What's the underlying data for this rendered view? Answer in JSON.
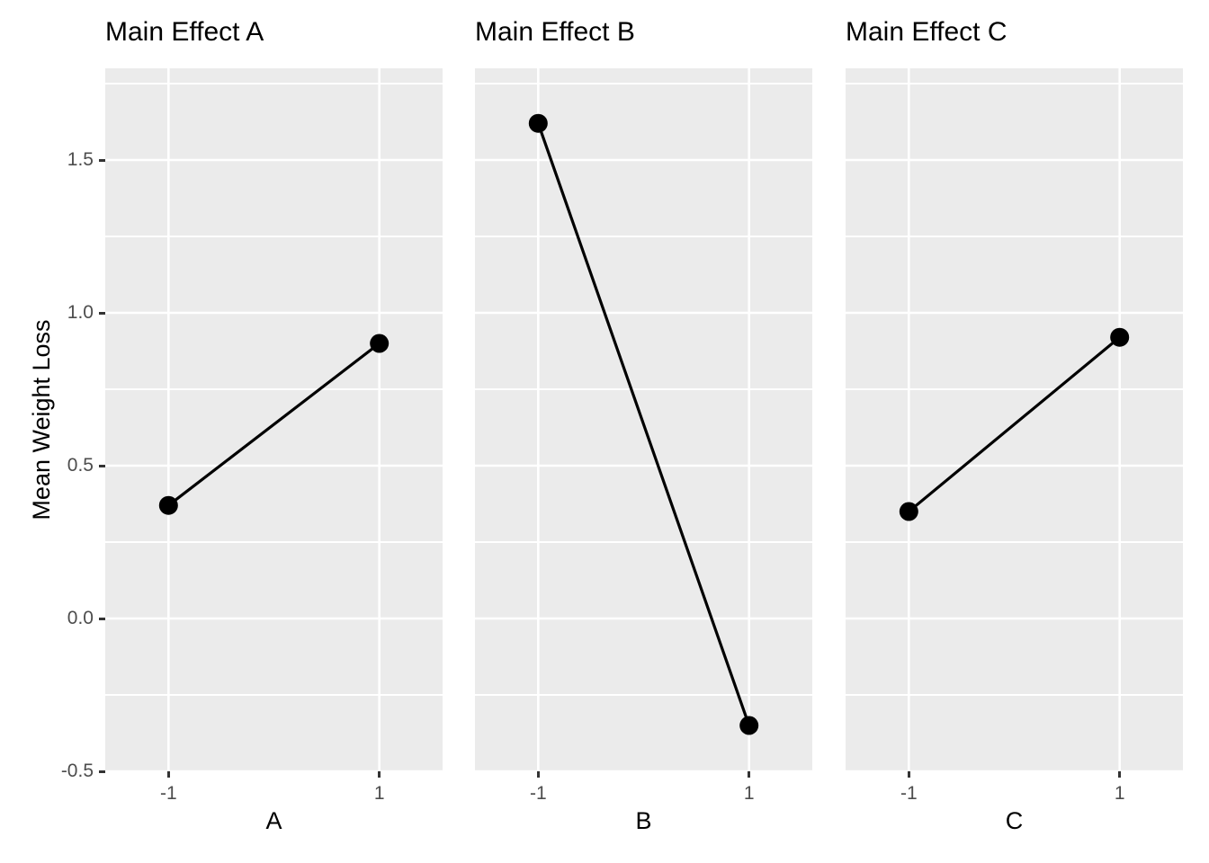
{
  "chart_data": [
    {
      "type": "line",
      "title": "Main Effect A",
      "xlabel": "A",
      "ylabel": "Mean Weight Loss",
      "x": [
        -1,
        1
      ],
      "values": [
        0.37,
        0.9
      ],
      "x_tick_labels": [
        "-1",
        "1"
      ],
      "xlim": [
        -1.6,
        1.6
      ],
      "ylim": [
        -0.5,
        1.8
      ],
      "grid": true,
      "legend": false
    },
    {
      "type": "line",
      "title": "Main Effect B",
      "xlabel": "B",
      "ylabel": "Mean Weight Loss",
      "x": [
        -1,
        1
      ],
      "values": [
        1.62,
        -0.35
      ],
      "x_tick_labels": [
        "-1",
        "1"
      ],
      "xlim": [
        -1.6,
        1.6
      ],
      "ylim": [
        -0.5,
        1.8
      ],
      "grid": true,
      "legend": false
    },
    {
      "type": "line",
      "title": "Main Effect C",
      "xlabel": "C",
      "ylabel": "Mean Weight Loss",
      "x": [
        -1,
        1
      ],
      "values": [
        0.35,
        0.92
      ],
      "x_tick_labels": [
        "-1",
        "1"
      ],
      "xlim": [
        -1.6,
        1.6
      ],
      "ylim": [
        -0.5,
        1.8
      ],
      "grid": true,
      "legend": false
    }
  ],
  "y_axis": {
    "title": "Mean Weight Loss",
    "ticks": [
      -0.5,
      0.0,
      0.5,
      1.0,
      1.5
    ],
    "tick_labels": [
      "-0.5",
      "0.0",
      "0.5",
      "1.0",
      "1.5"
    ],
    "minor_ticks": [
      -0.25,
      0.25,
      0.75,
      1.25,
      1.75
    ]
  },
  "x_axis": {
    "ticks": [
      -1,
      1
    ],
    "tick_labels": [
      "-1",
      "1"
    ],
    "minor_ticks": []
  },
  "style": {
    "background": "#FFFFFF",
    "panel_background": "#EBEBEB",
    "grid_color": "#FFFFFF",
    "line_color": "#000000",
    "point_color": "#000000",
    "tick_mark_color": "#333333",
    "tick_label_color": "#4D4D4D",
    "title_color": "#000000"
  }
}
